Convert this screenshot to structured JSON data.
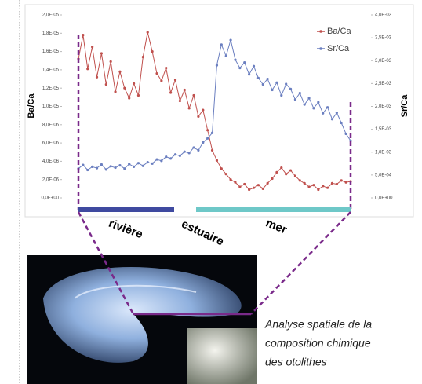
{
  "chart_data": {
    "type": "line",
    "y_label": "Ba/Ca",
    "y2_label": "Sr/Ca",
    "ylim": [
      0,
      2e-05
    ],
    "yticks": [
      {
        "value": 0,
        "label": "0,0E+00"
      },
      {
        "value": 2e-06,
        "label": "2,0E-06"
      },
      {
        "value": 4e-06,
        "label": "4,0E-06"
      },
      {
        "value": 6e-06,
        "label": "6,0E-06"
      },
      {
        "value": 8e-06,
        "label": "8,0E-06"
      },
      {
        "value": 1e-05,
        "label": "1,0E-05"
      },
      {
        "value": 1.2e-05,
        "label": "1,2E-05"
      },
      {
        "value": 1.4e-05,
        "label": "1,4E-05"
      },
      {
        "value": 1.6e-05,
        "label": "1,6E-05"
      },
      {
        "value": 1.8e-05,
        "label": "1,8E-05"
      },
      {
        "value": 2e-05,
        "label": "2,0E-05"
      }
    ],
    "y2lim": [
      0,
      0.004
    ],
    "y2ticks": [
      {
        "value": 0,
        "label": "0,0E+00"
      },
      {
        "value": 0.0005,
        "label": "5,0E-04"
      },
      {
        "value": 0.001,
        "label": "1,0E-03"
      },
      {
        "value": 0.0015,
        "label": "1,5E-03"
      },
      {
        "value": 0.002,
        "label": "2,0E-03"
      },
      {
        "value": 0.0025,
        "label": "2,5E-03"
      },
      {
        "value": 0.003,
        "label": "3,0E-03"
      },
      {
        "value": 0.0035,
        "label": "3,5E-03"
      },
      {
        "value": 0.004,
        "label": "4,0E-03"
      }
    ],
    "legend": "upper right",
    "series": [
      {
        "name": "Ba/Ca",
        "color": "#c0504d",
        "values": [
          1.52e-05,
          1.78e-05,
          1.41e-05,
          1.65e-05,
          1.32e-05,
          1.58e-05,
          1.24e-05,
          1.49e-05,
          1.16e-05,
          1.38e-05,
          1.2e-05,
          1.09e-05,
          1.25e-05,
          1.12e-05,
          1.54e-05,
          1.81e-05,
          1.6e-05,
          1.36e-05,
          1.28e-05,
          1.42e-05,
          1.15e-05,
          1.29e-05,
          1.06e-05,
          1.18e-05,
          9.8e-06,
          1.12e-05,
          8.9e-06,
          9.6e-06,
          7.4e-06,
          5.2e-06,
          4.1e-06,
          3.2e-06,
          2.6e-06,
          2e-06,
          1.7e-06,
          1.2e-06,
          1.5e-06,
          9e-07,
          1.1e-06,
          1.4e-06,
          1e-06,
          1.6e-06,
          2.1e-06,
          2.8e-06,
          3.3e-06,
          2.6e-06,
          3e-06,
          2.4e-06,
          1.9e-06,
          1.6e-06,
          1.2e-06,
          1.4e-06,
          9e-07,
          1.3e-06,
          1.1e-06,
          1.6e-06,
          1.5e-06,
          1.9e-06,
          1.7e-06,
          1.8e-06
        ]
      },
      {
        "name": "Sr/Ca",
        "color": "#6b7fc0",
        "axis": "y2",
        "values": [
          0.00064,
          0.00072,
          0.00061,
          0.00068,
          0.00065,
          0.00073,
          0.00062,
          0.00069,
          0.00066,
          0.00071,
          0.00064,
          0.00074,
          0.00068,
          0.00076,
          0.0007,
          0.00078,
          0.00075,
          0.00084,
          0.00081,
          0.0009,
          0.00086,
          0.00095,
          0.00092,
          0.00101,
          0.00098,
          0.0011,
          0.00104,
          0.00121,
          0.0013,
          0.00142,
          0.0029,
          0.00335,
          0.0031,
          0.00345,
          0.00302,
          0.00284,
          0.00296,
          0.0027,
          0.00288,
          0.00262,
          0.00248,
          0.0026,
          0.00236,
          0.00252,
          0.00224,
          0.00249,
          0.00238,
          0.00215,
          0.00229,
          0.00204,
          0.00218,
          0.00196,
          0.00209,
          0.00185,
          0.00198,
          0.00172,
          0.00186,
          0.00164,
          0.0014,
          0.00125
        ]
      }
    ]
  },
  "zones": [
    "rivière",
    "estuaire",
    "mer"
  ],
  "caption": [
    "Analyse spatiale de la",
    "composition chimique",
    "des otolithes"
  ]
}
